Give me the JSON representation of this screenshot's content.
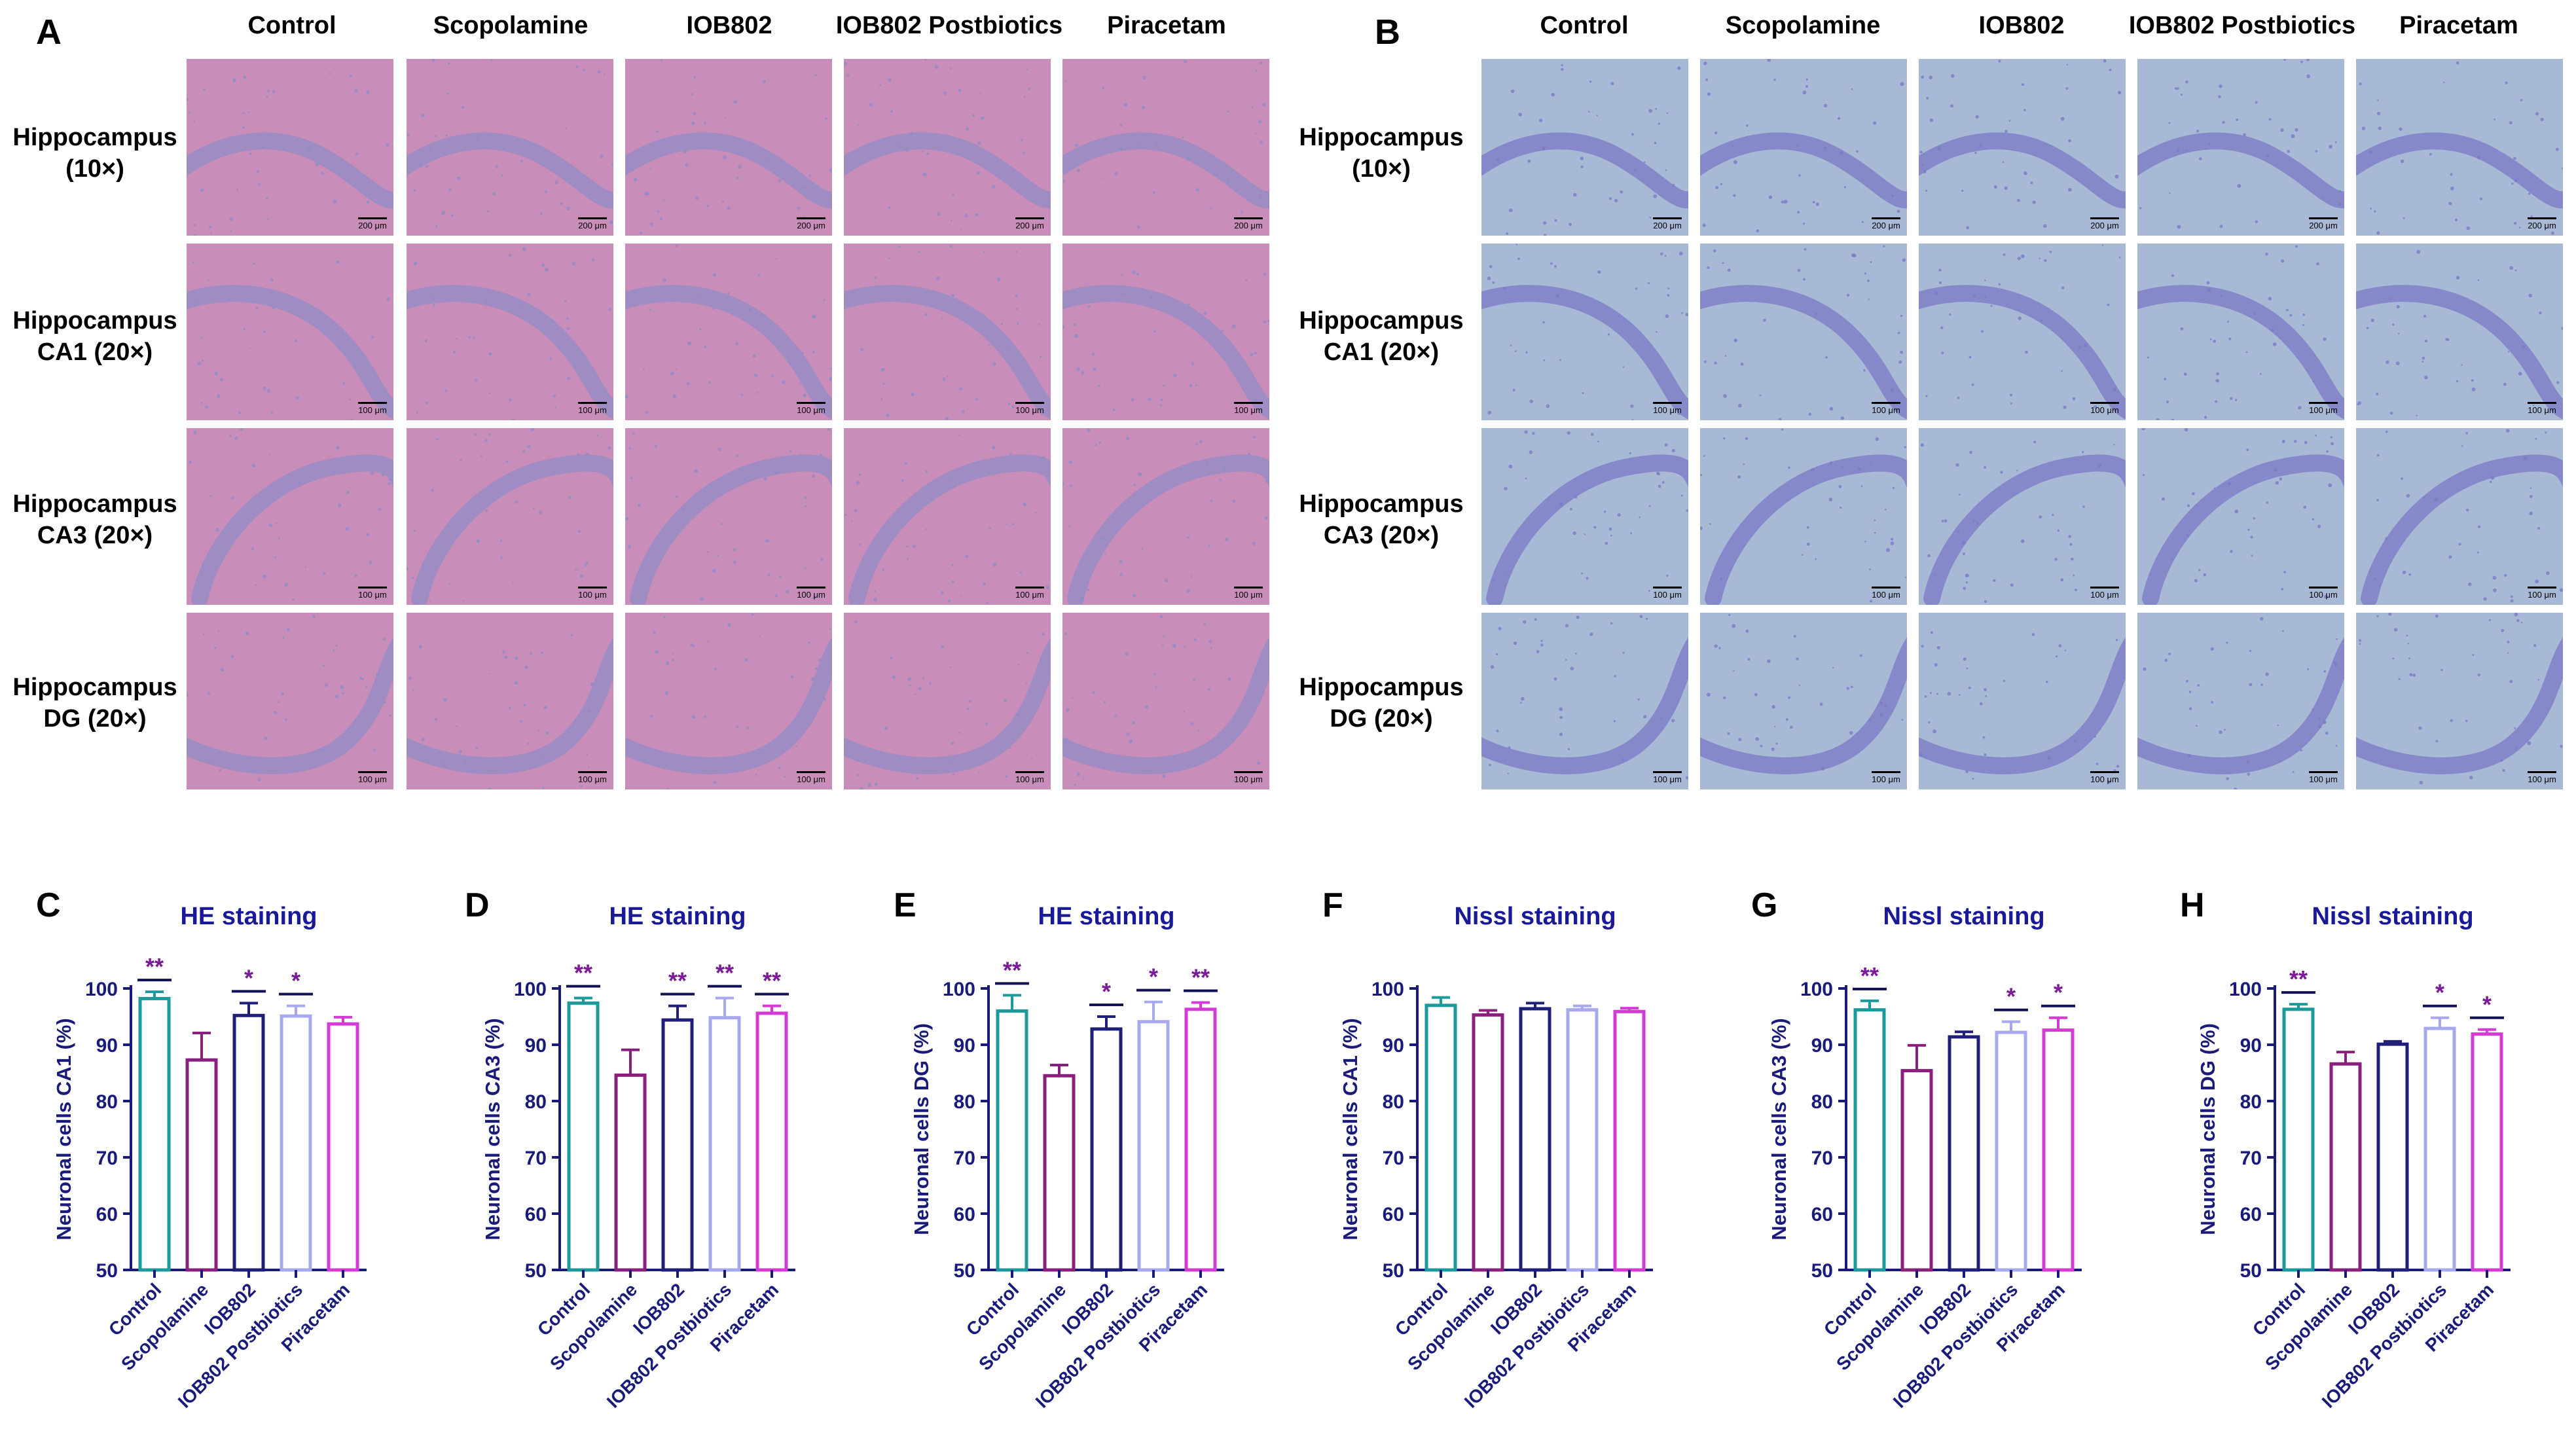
{
  "panels": {
    "A": "A",
    "B": "B",
    "C": "C",
    "D": "D",
    "E": "E",
    "F": "F",
    "G": "G",
    "H": "H"
  },
  "groups": [
    "Control",
    "Scopolamine",
    "IOB802",
    "IOB802 Postbiotics",
    "Piracetam"
  ],
  "rows": [
    {
      "line1": "Hippocampus",
      "line2": "(10×)"
    },
    {
      "line1": "Hippocampus",
      "line2": "CA1 (20×)"
    },
    {
      "line1": "Hippocampus",
      "line2": "CA3 (20×)"
    },
    {
      "line1": "Hippocampus",
      "line2": "DG (20×)"
    }
  ],
  "scale_labels": [
    "200 μm",
    "100 μm",
    "100 μm",
    "100 μm"
  ],
  "colors": {
    "Control": "#1a9a9a",
    "Scopolamine": "#8b1f7d",
    "IOB802": "#1f1f7a",
    "IOB802 Postbiotics": "#a8a8ee",
    "Piracetam": "#d63ad6",
    "axis": "#1a1a7a",
    "title": "#1a1a99",
    "sig": "#7a1a99",
    "he_bg": "#c98dba",
    "he_band": "#8f8cc4",
    "nissl_bg": "#a8b9d6",
    "nissl_band": "#7a7ac4"
  },
  "chart_data": [
    {
      "type": "bar",
      "panel": "C",
      "title": "HE staining",
      "ylabel": "Neuronal cells CA1 (%)",
      "ylim": [
        50,
        100
      ],
      "yticks": [
        50,
        60,
        70,
        80,
        90,
        100
      ],
      "categories": [
        "Control",
        "Scopolamine",
        "IOB802",
        "IOB802 Postbiotics",
        "Piracetam"
      ],
      "values": [
        98.2,
        87.3,
        95.2,
        95.1,
        93.7
      ],
      "errors": [
        1.2,
        4.8,
        2.2,
        1.8,
        1.2
      ],
      "significance": [
        "**",
        "",
        "*",
        "*",
        ""
      ]
    },
    {
      "type": "bar",
      "panel": "D",
      "title": "HE staining",
      "ylabel": "Neuronal cells CA3 (%)",
      "ylim": [
        50,
        100
      ],
      "yticks": [
        50,
        60,
        70,
        80,
        90,
        100
      ],
      "categories": [
        "Control",
        "Scopolamine",
        "IOB802",
        "IOB802 Postbiotics",
        "Piracetam"
      ],
      "values": [
        97.4,
        84.6,
        94.4,
        94.8,
        95.6
      ],
      "errors": [
        0.9,
        4.5,
        2.5,
        3.5,
        1.3
      ],
      "significance": [
        "**",
        "",
        "**",
        "**",
        "**"
      ]
    },
    {
      "type": "bar",
      "panel": "E",
      "title": "HE staining",
      "ylabel": "Neuronal cells DG (%)",
      "ylim": [
        50,
        100
      ],
      "yticks": [
        50,
        60,
        70,
        80,
        90,
        100
      ],
      "categories": [
        "Control",
        "Scopolamine",
        "IOB802",
        "IOB802 Postbiotics",
        "Piracetam"
      ],
      "values": [
        96.0,
        84.5,
        92.8,
        94.1,
        96.3
      ],
      "errors": [
        2.8,
        1.9,
        2.2,
        3.5,
        1.2
      ],
      "significance": [
        "**",
        "",
        "*",
        "*",
        "**"
      ]
    },
    {
      "type": "bar",
      "panel": "F",
      "title": "Nissl staining",
      "ylabel": "Neuronal cells CA1 (%)",
      "ylim": [
        50,
        100
      ],
      "yticks": [
        50,
        60,
        70,
        80,
        90,
        100
      ],
      "categories": [
        "Control",
        "Scopolamine",
        "IOB802",
        "IOB802 Postbiotics",
        "Piracetam"
      ],
      "values": [
        97.0,
        95.3,
        96.4,
        96.2,
        95.9
      ],
      "errors": [
        1.4,
        0.8,
        1.0,
        0.7,
        0.6
      ],
      "significance": [
        "",
        "",
        "",
        "",
        ""
      ]
    },
    {
      "type": "bar",
      "panel": "G",
      "title": "Nissl staining",
      "ylabel": "Neuronal cells CA3 (%)",
      "ylim": [
        50,
        100
      ],
      "yticks": [
        50,
        60,
        70,
        80,
        90,
        100
      ],
      "categories": [
        "Control",
        "Scopolamine",
        "IOB802",
        "IOB802 Postbiotics",
        "Piracetam"
      ],
      "values": [
        96.2,
        85.4,
        91.4,
        92.2,
        92.6
      ],
      "errors": [
        1.6,
        4.5,
        0.9,
        1.9,
        2.2
      ],
      "significance": [
        "**",
        "",
        "",
        "*",
        "*"
      ]
    },
    {
      "type": "bar",
      "panel": "H",
      "title": "Nissl staining",
      "ylabel": "Neuronal cells DG (%)",
      "ylim": [
        50,
        100
      ],
      "yticks": [
        50,
        60,
        70,
        80,
        90,
        100
      ],
      "categories": [
        "Control",
        "Scopolamine",
        "IOB802",
        "IOB802 Postbiotics",
        "Piracetam"
      ],
      "values": [
        96.3,
        86.6,
        90.1,
        92.9,
        91.9
      ],
      "errors": [
        0.9,
        2.1,
        0.5,
        1.9,
        0.8
      ],
      "significance": [
        "**",
        "",
        "",
        "*",
        "*"
      ]
    }
  ]
}
